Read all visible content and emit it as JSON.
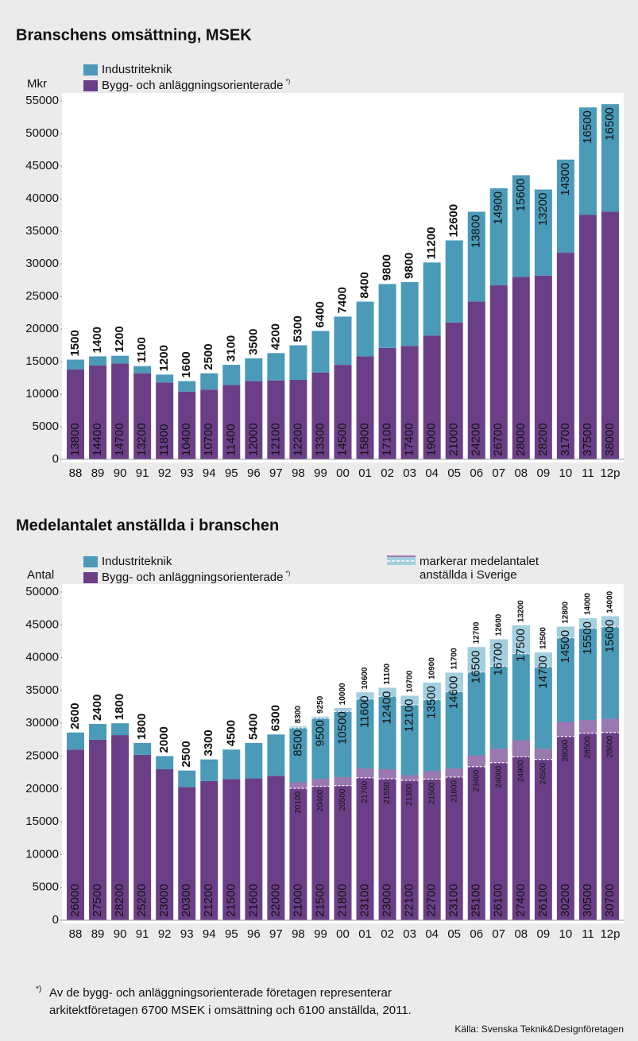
{
  "chart_data": [
    {
      "type": "stacked_bar",
      "title": "Branschens omsättning, MSEK",
      "y_label": "Mkr",
      "categories": [
        "88",
        "89",
        "90",
        "91",
        "92",
        "93",
        "94",
        "95",
        "96",
        "97",
        "98",
        "99",
        "00",
        "01",
        "02",
        "03",
        "04",
        "05",
        "06",
        "07",
        "08",
        "09",
        "10",
        "11",
        "12p"
      ],
      "series": [
        {
          "name": "Bygg- och anläggningsorienterade",
          "name_note": "*)",
          "color": "#6b3f87",
          "values": [
            13800,
            14400,
            14700,
            13200,
            11800,
            10400,
            10700,
            11400,
            12000,
            12100,
            12200,
            13300,
            14500,
            15800,
            17100,
            17400,
            19000,
            21000,
            24200,
            26700,
            28000,
            28200,
            31700,
            37500,
            38000
          ]
        },
        {
          "name": "Industriteknik",
          "color": "#4a9ab8",
          "values": [
            1500,
            1400,
            1200,
            1100,
            1200,
            1600,
            2500,
            3100,
            3500,
            4200,
            5300,
            6400,
            7400,
            8400,
            9800,
            9800,
            11200,
            12600,
            13800,
            14900,
            15600,
            13200,
            14300,
            16500,
            16500
          ]
        }
      ],
      "ylim": [
        0,
        55000
      ],
      "yticks": [
        0,
        5000,
        10000,
        15000,
        20000,
        25000,
        30000,
        35000,
        40000,
        45000,
        50000,
        55000
      ]
    },
    {
      "type": "stacked_bar",
      "title": "Medelantalet anställda i branschen",
      "y_label": "Antal",
      "categories": [
        "88",
        "89",
        "90",
        "91",
        "92",
        "93",
        "94",
        "95",
        "96",
        "97",
        "98",
        "99",
        "00",
        "01",
        "02",
        "03",
        "04",
        "05",
        "06",
        "07",
        "08",
        "09",
        "10",
        "11",
        "12p"
      ],
      "series": [
        {
          "name": "Bygg- och anläggningsorienterade",
          "name_note": "*)",
          "color": "#6b3f87",
          "values": [
            26000,
            27500,
            28200,
            25200,
            23000,
            20300,
            21200,
            21500,
            21600,
            22000,
            21000,
            21500,
            21800,
            23100,
            23000,
            22100,
            22700,
            23100,
            25100,
            26100,
            27400,
            26100,
            30200,
            30500,
            30700
          ]
        },
        {
          "name": "Industriteknik",
          "color": "#4a9ab8",
          "values": [
            2600,
            2400,
            1800,
            1800,
            2000,
            2500,
            3300,
            4500,
            5400,
            6300,
            8500,
            9500,
            10500,
            11600,
            12400,
            12100,
            13500,
            14600,
            16500,
            16700,
            17500,
            14700,
            14500,
            15500,
            15600
          ]
        }
      ],
      "sverige": {
        "legend": [
          "markerar medelantalet",
          "anställda i Sverige"
        ],
        "color_bygg": "#9a78b0",
        "color_industri": "#a3cfe0",
        "bygg": [
          null,
          null,
          null,
          null,
          null,
          null,
          null,
          null,
          null,
          null,
          20100,
          20400,
          20500,
          21700,
          21550,
          21300,
          21500,
          21800,
          23400,
          24000,
          24900,
          24500,
          28000,
          28500,
          28600
        ],
        "industri": [
          null,
          null,
          null,
          null,
          null,
          null,
          null,
          null,
          null,
          null,
          8300,
          9250,
          10000,
          10600,
          11100,
          10700,
          10900,
          11700,
          12700,
          12600,
          13200,
          12500,
          12800,
          14000,
          14000
        ]
      },
      "ylim": [
        0,
        50000
      ],
      "yticks": [
        0,
        5000,
        10000,
        15000,
        20000,
        25000,
        30000,
        35000,
        40000,
        45000,
        50000
      ]
    }
  ],
  "footnote": {
    "mark": "*)",
    "lines": [
      "Av de bygg- och anläggningsorienterade företagen representerar",
      "arkitektföretagen 6700 MSEK i omsättning och 6100 anställda, 2011."
    ]
  },
  "source": "Källa: Svenska Teknik&Designföretagen"
}
